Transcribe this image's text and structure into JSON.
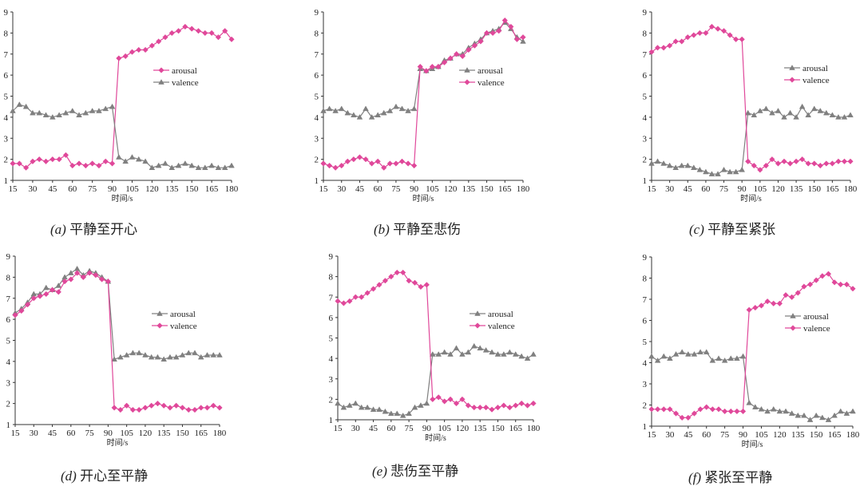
{
  "chart_data": [
    {
      "type": "line",
      "panel_label": "(a)",
      "title": "平静至开心",
      "xlabel": "时间/s",
      "ylabel": "",
      "xlim": [
        15,
        180
      ],
      "ylim": [
        1,
        9
      ],
      "xticks": [
        15,
        30,
        45,
        60,
        75,
        90,
        105,
        120,
        135,
        150,
        165,
        180
      ],
      "yticks": [
        1,
        2,
        3,
        4,
        5,
        6,
        7,
        8,
        9
      ],
      "legend_position": "right",
      "x": [
        15,
        20,
        25,
        30,
        35,
        40,
        45,
        50,
        55,
        60,
        65,
        70,
        75,
        80,
        85,
        90,
        95,
        100,
        105,
        110,
        115,
        120,
        125,
        130,
        135,
        140,
        145,
        150,
        155,
        160,
        165,
        170,
        175,
        180
      ],
      "series": [
        {
          "name": "arousal",
          "color": "#e0489a",
          "marker": "diamond",
          "values": [
            1.8,
            1.8,
            1.6,
            1.9,
            2.0,
            1.9,
            2.0,
            2.0,
            2.2,
            1.7,
            1.8,
            1.7,
            1.8,
            1.7,
            1.9,
            1.8,
            6.8,
            6.9,
            7.1,
            7.2,
            7.2,
            7.4,
            7.6,
            7.8,
            8.0,
            8.1,
            8.3,
            8.2,
            8.1,
            8.0,
            8.0,
            7.8,
            8.1,
            7.7
          ]
        },
        {
          "name": "valence",
          "color": "#808080",
          "marker": "triangle",
          "values": [
            4.3,
            4.6,
            4.5,
            4.2,
            4.2,
            4.1,
            4.0,
            4.1,
            4.2,
            4.3,
            4.1,
            4.2,
            4.3,
            4.3,
            4.4,
            4.5,
            2.1,
            1.9,
            2.1,
            2.0,
            1.9,
            1.6,
            1.7,
            1.8,
            1.6,
            1.7,
            1.8,
            1.7,
            1.6,
            1.6,
            1.7,
            1.6,
            1.6,
            1.7
          ]
        }
      ]
    },
    {
      "type": "line",
      "panel_label": "(b)",
      "title": "平静至悲伤",
      "xlabel": "时间/s",
      "ylabel": "",
      "xlim": [
        15,
        180
      ],
      "ylim": [
        1,
        9
      ],
      "xticks": [
        15,
        30,
        45,
        60,
        75,
        90,
        105,
        120,
        135,
        150,
        165,
        180
      ],
      "yticks": [
        1,
        2,
        3,
        4,
        5,
        6,
        7,
        8,
        9
      ],
      "legend_position": "right",
      "x": [
        15,
        20,
        25,
        30,
        35,
        40,
        45,
        50,
        55,
        60,
        65,
        70,
        75,
        80,
        85,
        90,
        95,
        100,
        105,
        110,
        115,
        120,
        125,
        130,
        135,
        140,
        145,
        150,
        155,
        160,
        165,
        170,
        175,
        180
      ],
      "series": [
        {
          "name": "arousal",
          "color": "#808080",
          "marker": "triangle",
          "values": [
            4.3,
            4.4,
            4.3,
            4.4,
            4.2,
            4.1,
            4.0,
            4.4,
            4.0,
            4.1,
            4.2,
            4.3,
            4.5,
            4.4,
            4.3,
            4.4,
            6.3,
            6.2,
            6.3,
            6.4,
            6.7,
            6.8,
            7.0,
            7.0,
            7.3,
            7.5,
            7.7,
            8.0,
            8.1,
            8.2,
            8.5,
            8.2,
            7.8,
            7.6
          ]
        },
        {
          "name": "valence",
          "color": "#e0489a",
          "marker": "diamond",
          "values": [
            1.8,
            1.7,
            1.6,
            1.7,
            1.9,
            2.0,
            2.1,
            2.0,
            1.8,
            1.9,
            1.6,
            1.8,
            1.8,
            1.9,
            1.8,
            1.7,
            6.4,
            6.2,
            6.4,
            6.4,
            6.6,
            6.8,
            7.0,
            6.9,
            7.2,
            7.4,
            7.6,
            8.0,
            8.0,
            8.1,
            8.6,
            8.3,
            7.7,
            7.8
          ]
        }
      ]
    },
    {
      "type": "line",
      "panel_label": "(c)",
      "title": "平静至紧张",
      "xlabel": "时间/s",
      "ylabel": "",
      "xlim": [
        15,
        180
      ],
      "ylim": [
        1,
        9
      ],
      "xticks": [
        15,
        30,
        45,
        60,
        75,
        90,
        105,
        120,
        135,
        150,
        165,
        180
      ],
      "yticks": [
        1,
        2,
        3,
        4,
        5,
        6,
        7,
        8,
        9
      ],
      "legend_position": "right",
      "x": [
        15,
        20,
        25,
        30,
        35,
        40,
        45,
        50,
        55,
        60,
        65,
        70,
        75,
        80,
        85,
        90,
        95,
        100,
        105,
        110,
        115,
        120,
        125,
        130,
        135,
        140,
        145,
        150,
        155,
        160,
        165,
        170,
        175,
        180
      ],
      "series": [
        {
          "name": "arousal",
          "color": "#808080",
          "marker": "triangle",
          "values": [
            1.8,
            1.9,
            1.8,
            1.7,
            1.6,
            1.7,
            1.7,
            1.6,
            1.5,
            1.4,
            1.3,
            1.3,
            1.5,
            1.4,
            1.4,
            1.5,
            4.2,
            4.1,
            4.3,
            4.4,
            4.2,
            4.3,
            4.0,
            4.2,
            4.0,
            4.5,
            4.1,
            4.4,
            4.3,
            4.2,
            4.1,
            4.0,
            4.0,
            4.1
          ]
        },
        {
          "name": "valence",
          "color": "#e0489a",
          "marker": "diamond",
          "values": [
            7.1,
            7.3,
            7.3,
            7.4,
            7.6,
            7.6,
            7.8,
            7.9,
            8.0,
            8.0,
            8.3,
            8.2,
            8.1,
            7.9,
            7.7,
            7.7,
            1.9,
            1.7,
            1.5,
            1.7,
            2.0,
            1.8,
            1.9,
            1.8,
            1.9,
            2.0,
            1.8,
            1.8,
            1.7,
            1.8,
            1.8,
            1.9,
            1.9,
            1.9
          ]
        }
      ]
    },
    {
      "type": "line",
      "panel_label": "(d)",
      "title": "开心至平静",
      "xlabel": "时间/s",
      "ylabel": "",
      "xlim": [
        15,
        180
      ],
      "ylim": [
        1,
        9
      ],
      "xticks": [
        15,
        30,
        45,
        60,
        75,
        90,
        105,
        120,
        135,
        150,
        165,
        180
      ],
      "yticks": [
        1,
        2,
        3,
        4,
        5,
        6,
        7,
        8,
        9
      ],
      "legend_position": "right",
      "x": [
        15,
        20,
        25,
        30,
        35,
        40,
        45,
        50,
        55,
        60,
        65,
        70,
        75,
        80,
        85,
        90,
        95,
        100,
        105,
        110,
        115,
        120,
        125,
        130,
        135,
        140,
        145,
        150,
        155,
        160,
        165,
        170,
        175,
        180
      ],
      "series": [
        {
          "name": "arousal",
          "color": "#808080",
          "marker": "triangle",
          "values": [
            6.3,
            6.5,
            6.8,
            7.2,
            7.2,
            7.5,
            7.4,
            7.6,
            8.0,
            8.2,
            8.4,
            8.1,
            8.3,
            8.2,
            8.0,
            7.8,
            4.1,
            4.2,
            4.3,
            4.4,
            4.4,
            4.3,
            4.2,
            4.2,
            4.1,
            4.2,
            4.2,
            4.3,
            4.4,
            4.4,
            4.2,
            4.3,
            4.3,
            4.3
          ]
        },
        {
          "name": "valence",
          "color": "#e0489a",
          "marker": "diamond",
          "values": [
            6.2,
            6.4,
            6.7,
            7.0,
            7.1,
            7.2,
            7.4,
            7.3,
            7.8,
            7.9,
            8.2,
            8.0,
            8.2,
            8.1,
            7.9,
            7.8,
            1.8,
            1.7,
            1.9,
            1.7,
            1.7,
            1.8,
            1.9,
            2.0,
            1.9,
            1.8,
            1.9,
            1.8,
            1.7,
            1.7,
            1.8,
            1.8,
            1.9,
            1.8
          ]
        }
      ]
    },
    {
      "type": "line",
      "panel_label": "(e)",
      "title": "悲伤至平静",
      "xlabel": "时间/s",
      "ylabel": "",
      "xlim": [
        15,
        180
      ],
      "ylim": [
        1,
        9
      ],
      "xticks": [
        15,
        30,
        45,
        60,
        75,
        90,
        105,
        120,
        135,
        150,
        165,
        180
      ],
      "yticks": [
        1,
        2,
        3,
        4,
        5,
        6,
        7,
        8,
        9
      ],
      "legend_position": "right",
      "x": [
        15,
        20,
        25,
        30,
        35,
        40,
        45,
        50,
        55,
        60,
        65,
        70,
        75,
        80,
        85,
        90,
        95,
        100,
        105,
        110,
        115,
        120,
        125,
        130,
        135,
        140,
        145,
        150,
        155,
        160,
        165,
        170,
        175,
        180
      ],
      "series": [
        {
          "name": "arousal",
          "color": "#808080",
          "marker": "triangle",
          "values": [
            1.8,
            1.6,
            1.7,
            1.8,
            1.6,
            1.6,
            1.5,
            1.5,
            1.4,
            1.3,
            1.3,
            1.2,
            1.3,
            1.6,
            1.7,
            1.8,
            4.2,
            4.2,
            4.3,
            4.2,
            4.5,
            4.2,
            4.3,
            4.6,
            4.5,
            4.4,
            4.3,
            4.2,
            4.2,
            4.3,
            4.2,
            4.1,
            4.0,
            4.2
          ]
        },
        {
          "name": "valence",
          "color": "#e0489a",
          "marker": "diamond",
          "values": [
            6.8,
            6.7,
            6.8,
            7.0,
            7.0,
            7.2,
            7.4,
            7.6,
            7.8,
            8.0,
            8.2,
            8.2,
            7.8,
            7.7,
            7.5,
            7.6,
            2.0,
            2.1,
            1.9,
            2.0,
            1.8,
            2.0,
            1.7,
            1.6,
            1.6,
            1.6,
            1.5,
            1.6,
            1.7,
            1.6,
            1.7,
            1.8,
            1.7,
            1.8
          ]
        }
      ]
    },
    {
      "type": "line",
      "panel_label": "(f)",
      "title": "紧张至平静",
      "xlabel": "时间/s",
      "ylabel": "",
      "xlim": [
        15,
        180
      ],
      "ylim": [
        1,
        9
      ],
      "xticks": [
        15,
        30,
        45,
        60,
        75,
        90,
        105,
        120,
        135,
        150,
        165,
        180
      ],
      "yticks": [
        1,
        2,
        3,
        4,
        5,
        6,
        7,
        8,
        9
      ],
      "legend_position": "right",
      "x": [
        15,
        20,
        25,
        30,
        35,
        40,
        45,
        50,
        55,
        60,
        65,
        70,
        75,
        80,
        85,
        90,
        95,
        100,
        105,
        110,
        115,
        120,
        125,
        130,
        135,
        140,
        145,
        150,
        155,
        160,
        165,
        170,
        175,
        180
      ],
      "series": [
        {
          "name": "arousal",
          "color": "#808080",
          "marker": "triangle",
          "values": [
            4.3,
            4.1,
            4.3,
            4.2,
            4.4,
            4.5,
            4.4,
            4.4,
            4.5,
            4.5,
            4.1,
            4.2,
            4.1,
            4.2,
            4.2,
            4.3,
            2.1,
            1.9,
            1.8,
            1.7,
            1.8,
            1.7,
            1.7,
            1.6,
            1.5,
            1.5,
            1.3,
            1.5,
            1.4,
            1.3,
            1.5,
            1.7,
            1.6,
            1.7
          ]
        },
        {
          "name": "valence",
          "color": "#e0489a",
          "marker": "diamond",
          "values": [
            1.8,
            1.8,
            1.8,
            1.8,
            1.6,
            1.4,
            1.4,
            1.6,
            1.8,
            1.9,
            1.8,
            1.8,
            1.7,
            1.7,
            1.7,
            1.7,
            6.5,
            6.6,
            6.7,
            6.9,
            6.8,
            6.8,
            7.2,
            7.1,
            7.3,
            7.6,
            7.7,
            7.9,
            8.1,
            8.2,
            7.8,
            7.7,
            7.7,
            7.5
          ]
        }
      ]
    }
  ]
}
